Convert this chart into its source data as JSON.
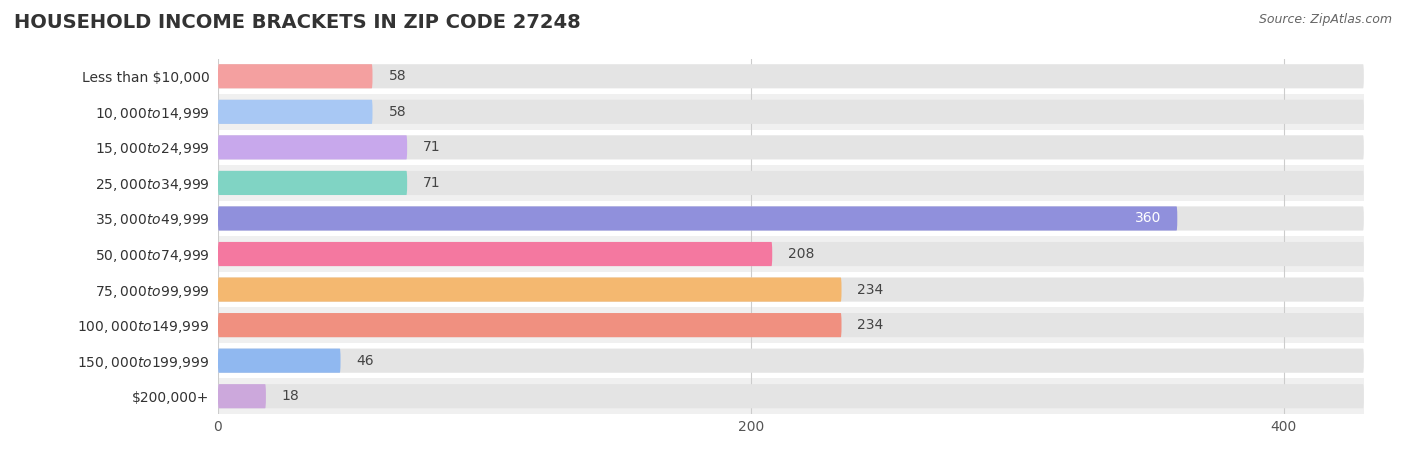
{
  "title": "HOUSEHOLD INCOME BRACKETS IN ZIP CODE 27248",
  "source": "Source: ZipAtlas.com",
  "categories": [
    "Less than $10,000",
    "$10,000 to $14,999",
    "$15,000 to $24,999",
    "$25,000 to $34,999",
    "$35,000 to $49,999",
    "$50,000 to $74,999",
    "$75,000 to $99,999",
    "$100,000 to $149,999",
    "$150,000 to $199,999",
    "$200,000+"
  ],
  "values": [
    58,
    58,
    71,
    71,
    360,
    208,
    234,
    234,
    46,
    18
  ],
  "colors": [
    "#F4A0A0",
    "#A8C8F4",
    "#C8A8EC",
    "#80D4C4",
    "#9090DC",
    "#F478A0",
    "#F4B870",
    "#F09080",
    "#90B8F0",
    "#CCA8DC"
  ],
  "xlim": [
    0,
    430
  ],
  "xticks": [
    0,
    200,
    400
  ],
  "row_colors": [
    "#ffffff",
    "#f0f0f0"
  ],
  "bar_bg_color": "#e4e4e4",
  "title_fontsize": 14,
  "label_fontsize": 10,
  "value_fontsize": 10,
  "bar_height": 0.68,
  "value_label_color_inside": "#ffffff",
  "value_label_color_outside": "#444444",
  "inside_threshold": 300
}
